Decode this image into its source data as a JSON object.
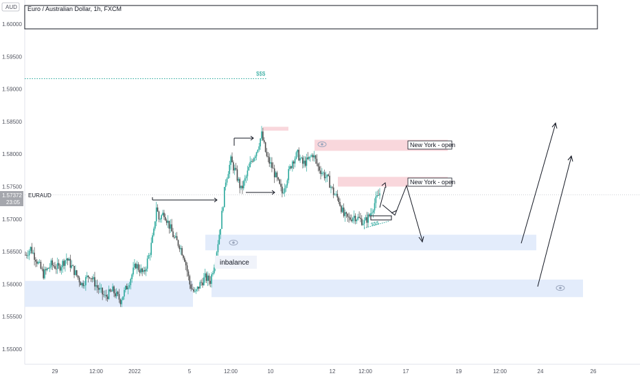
{
  "header": {
    "currency_badge": "AUD",
    "symbol_title": "Euro / Australian Dollar, 1h, FXCM"
  },
  "price_tag": {
    "symbol": "EURAUD",
    "last_price": "1.57372",
    "countdown": "23:05"
  },
  "annotations": {
    "liquidity_top": "$$$",
    "liquidity_bottom": "$$$",
    "ny_open_1": "New York - open",
    "ny_open_2": "New York - open",
    "imbalance_label": "inbalance"
  },
  "colors": {
    "up_candle": "#26a69a",
    "down_candle": "#4a4a4a",
    "demand_zone": "#e3ecfb",
    "supply_zone": "#f9d7dc",
    "liquidity_line": "#26a69a",
    "eye_icon": "#9aa6bd"
  },
  "chart_data": {
    "type": "candlestick",
    "title": "Euro / Australian Dollar, 1h, FXCM",
    "ylim": [
      1.5465,
      1.6045
    ],
    "y_ticks": [
      "1.60000",
      "1.59500",
      "1.59000",
      "1.58500",
      "1.58000",
      "1.57500",
      "1.57000",
      "1.56500",
      "1.56000",
      "1.55500",
      "1.55000"
    ],
    "x_ticks": [
      "29",
      "12:00",
      "2022",
      "5",
      "12:00",
      "10",
      "12",
      "12:00",
      "17",
      "19",
      "12:00",
      "24",
      "26"
    ],
    "last_price": 1.57372,
    "price_path": [
      [
        0,
        1.5645
      ],
      [
        4,
        1.5655
      ],
      [
        8,
        1.564
      ],
      [
        14,
        1.5615
      ],
      [
        20,
        1.563
      ],
      [
        26,
        1.5625
      ],
      [
        32,
        1.564
      ],
      [
        38,
        1.562
      ],
      [
        44,
        1.56
      ],
      [
        50,
        1.5615
      ],
      [
        56,
        1.5595
      ],
      [
        62,
        1.558
      ],
      [
        68,
        1.559
      ],
      [
        74,
        1.5575
      ],
      [
        80,
        1.56
      ],
      [
        86,
        1.563
      ],
      [
        92,
        1.5615
      ],
      [
        97,
        1.565
      ],
      [
        100,
        1.568
      ],
      [
        102,
        1.572
      ],
      [
        104,
        1.57
      ],
      [
        108,
        1.571
      ],
      [
        112,
        1.569
      ],
      [
        116,
        1.567
      ],
      [
        120,
        1.566
      ],
      [
        124,
        1.564
      ],
      [
        128,
        1.56
      ],
      [
        132,
        1.5585
      ],
      [
        136,
        1.56
      ],
      [
        140,
        1.561
      ],
      [
        144,
        1.5605
      ],
      [
        148,
        1.564
      ],
      [
        152,
        1.569
      ],
      [
        156,
        1.576
      ],
      [
        160,
        1.579
      ],
      [
        164,
        1.577
      ],
      [
        168,
        1.5745
      ],
      [
        172,
        1.5765
      ],
      [
        176,
        1.579
      ],
      [
        180,
        1.5805
      ],
      [
        184,
        1.583
      ],
      [
        188,
        1.5795
      ],
      [
        192,
        1.578
      ],
      [
        196,
        1.576
      ],
      [
        200,
        1.574
      ],
      [
        204,
        1.5765
      ],
      [
        208,
        1.579
      ],
      [
        212,
        1.58
      ],
      [
        216,
        1.5785
      ],
      [
        220,
        1.579
      ],
      [
        224,
        1.58
      ],
      [
        228,
        1.578
      ],
      [
        232,
        1.577
      ],
      [
        236,
        1.576
      ],
      [
        240,
        1.574
      ],
      [
        244,
        1.573
      ],
      [
        248,
        1.5705
      ],
      [
        252,
        1.57
      ],
      [
        256,
        1.5705
      ],
      [
        260,
        1.57
      ],
      [
        264,
        1.5695
      ],
      [
        268,
        1.5705
      ],
      [
        272,
        1.5725
      ],
      [
        276,
        1.574
      ]
    ],
    "zones": [
      {
        "kind": "supply",
        "top": 1.5842,
        "bottom": 1.5836
      },
      {
        "kind": "supply",
        "top": 1.5822,
        "bottom": 1.5805
      },
      {
        "kind": "supply",
        "top": 1.5765,
        "bottom": 1.575
      },
      {
        "kind": "demand",
        "top": 1.5676,
        "bottom": 1.5652
      },
      {
        "kind": "demand",
        "top": 1.5607,
        "bottom": 1.558
      },
      {
        "kind": "demand",
        "top": 1.5605,
        "bottom": 1.5565
      }
    ],
    "levels": [
      {
        "kind": "liquidity",
        "price": 1.5916
      },
      {
        "kind": "structure-break",
        "price": 1.5735
      },
      {
        "kind": "structure-break",
        "price": 1.5823
      },
      {
        "kind": "structure-break",
        "price": 1.5745
      }
    ]
  }
}
